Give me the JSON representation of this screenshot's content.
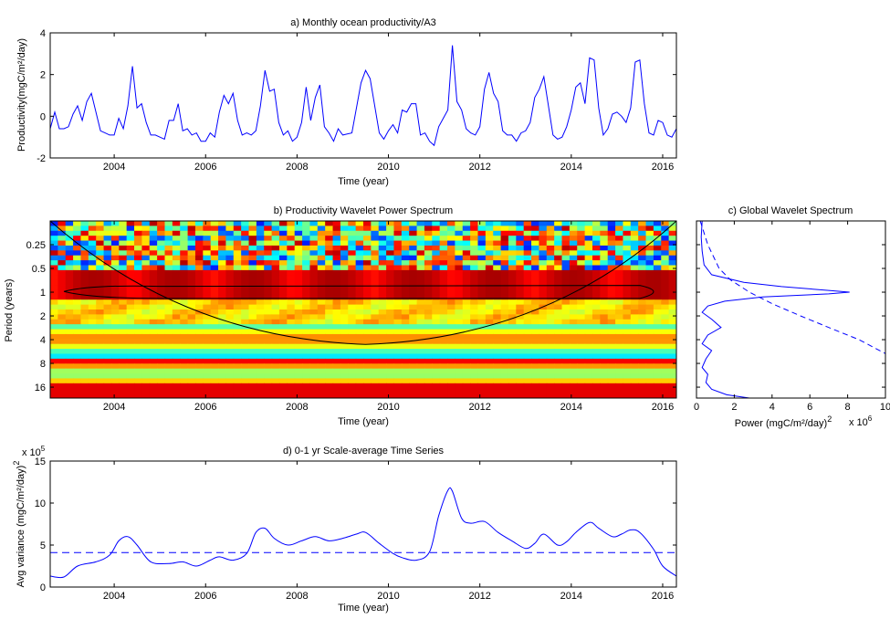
{
  "chart_data": [
    {
      "id": "a",
      "type": "line",
      "title": "a) Monthly ocean productivity/A3",
      "xlabel": "Time (year)",
      "ylabel": "Productivity(mgC/m²/day)",
      "xlim": [
        2002.6,
        2016.3
      ],
      "ylim": [
        -2,
        4
      ],
      "xticks": [
        2004,
        2006,
        2008,
        2010,
        2012,
        2014,
        2016
      ],
      "yticks": [
        -2,
        0,
        2,
        4
      ],
      "line_color": "#0000ff",
      "series": [
        {
          "x": [
            2002.6,
            2002.7,
            2002.8,
            2002.9,
            2003.0,
            2003.1,
            2003.2,
            2003.3,
            2003.4,
            2003.5,
            2003.6,
            2003.7,
            2003.8,
            2003.9,
            2004.0,
            2004.1,
            2004.2,
            2004.3,
            2004.4,
            2004.5,
            2004.6,
            2004.7,
            2004.8,
            2004.9,
            2005.0,
            2005.1,
            2005.2,
            2005.3,
            2005.4,
            2005.5,
            2005.6,
            2005.7,
            2005.8,
            2005.9,
            2006.0,
            2006.1,
            2006.2,
            2006.3,
            2006.4,
            2006.5,
            2006.6,
            2006.7,
            2006.8,
            2006.9,
            2007.0,
            2007.1,
            2007.2,
            2007.3,
            2007.4,
            2007.5,
            2007.6,
            2007.7,
            2007.8,
            2007.9,
            2008.0,
            2008.1,
            2008.2,
            2008.3,
            2008.4,
            2008.5,
            2008.6,
            2008.7,
            2008.8,
            2008.9,
            2009.0,
            2009.2,
            2009.4,
            2009.5,
            2009.6,
            2009.8,
            2009.9,
            2010.0,
            2010.1,
            2010.2,
            2010.3,
            2010.4,
            2010.5,
            2010.6,
            2010.7,
            2010.8,
            2010.9,
            2011.0,
            2011.1,
            2011.2,
            2011.3,
            2011.4,
            2011.5,
            2011.6,
            2011.7,
            2011.8,
            2011.9,
            2012.0,
            2012.1,
            2012.2,
            2012.3,
            2012.4,
            2012.5,
            2012.6,
            2012.7,
            2012.8,
            2012.9,
            2013.0,
            2013.1,
            2013.2,
            2013.3,
            2013.4,
            2013.5,
            2013.6,
            2013.7,
            2013.8,
            2013.9,
            2014.0,
            2014.1,
            2014.2,
            2014.3,
            2014.4,
            2014.5,
            2014.6,
            2014.7,
            2014.8,
            2014.9,
            2015.0,
            2015.1,
            2015.2,
            2015.3,
            2015.4,
            2015.5,
            2015.6,
            2015.7,
            2015.8,
            2015.9,
            2016.0,
            2016.1,
            2016.2,
            2016.3
          ],
          "y": [
            -0.6,
            0.2,
            -0.6,
            -0.6,
            -0.5,
            0.1,
            0.5,
            -0.2,
            0.7,
            1.1,
            0.2,
            -0.7,
            -0.8,
            -0.9,
            -0.9,
            -0.1,
            -0.6,
            0.5,
            2.4,
            0.4,
            0.6,
            -0.3,
            -0.9,
            -0.9,
            -1.0,
            -1.1,
            -0.2,
            -0.2,
            0.6,
            -0.7,
            -0.6,
            -0.9,
            -0.8,
            -1.2,
            -1.2,
            -0.8,
            -1.0,
            0.2,
            1.0,
            0.6,
            1.1,
            -0.2,
            -0.9,
            -0.8,
            -0.9,
            -0.7,
            0.5,
            2.2,
            1.2,
            1.3,
            -0.3,
            -0.9,
            -0.7,
            -1.2,
            -1.0,
            -0.3,
            1.4,
            -0.2,
            0.9,
            1.5,
            -0.5,
            -0.8,
            -1.2,
            -0.6,
            -0.9,
            -0.8,
            1.6,
            2.2,
            1.8,
            -0.8,
            -1.1,
            -0.7,
            -0.4,
            -0.8,
            0.3,
            0.2,
            0.6,
            0.6,
            -0.9,
            -0.8,
            -1.2,
            -1.4,
            -0.5,
            -0.1,
            0.3,
            3.4,
            0.7,
            0.3,
            -0.6,
            -0.8,
            -0.9,
            -0.5,
            1.3,
            2.1,
            1.1,
            0.7,
            -0.7,
            -0.9,
            -0.9,
            -1.2,
            -0.8,
            -0.7,
            -0.3,
            0.9,
            1.3,
            1.9,
            0.5,
            -0.9,
            -1.1,
            -1.0,
            -0.5,
            0.3,
            1.4,
            1.6,
            0.6,
            2.8,
            2.7,
            0.4,
            -0.9,
            -0.6,
            0.1,
            0.2,
            0.0,
            -0.3,
            0.4,
            2.6,
            2.7,
            0.6,
            -0.8,
            -0.9,
            -0.2,
            -0.3,
            -0.9,
            -1.0,
            -0.6
          ]
        }
      ]
    },
    {
      "id": "b",
      "type": "heatmap",
      "title": "b) Productivity Wavelet Power Spectrum",
      "xlabel": "Time (year)",
      "ylabel": "Period (years)",
      "xlim": [
        2002.6,
        2016.3
      ],
      "ylim": [
        0.125,
        22
      ],
      "yscale": "log2-reversed",
      "xticks": [
        2004,
        2006,
        2008,
        2010,
        2012,
        2014,
        2016
      ],
      "ytick_labels": [
        "0.25",
        "0.5",
        "1",
        "2",
        "4",
        "8",
        "16"
      ],
      "yticks": [
        0.25,
        0.5,
        1,
        2,
        4,
        8,
        16
      ],
      "colormap": "jet"
    },
    {
      "id": "c",
      "type": "line",
      "title": "c) Global Wavelet Spectrum",
      "xlabel": "Power (mgC/m²/day)",
      "xlabel_sup": "2",
      "x_multiplier": "x 10",
      "x_multiplier_exp": "6",
      "xlim": [
        0,
        10
      ],
      "xticks": [
        0,
        2,
        4,
        6,
        8,
        10
      ],
      "line_color": "#0000ff",
      "series": [
        {
          "style": "solid",
          "period": [
            0.125,
            0.2,
            0.3,
            0.45,
            0.6,
            0.75,
            0.85,
            0.95,
            1.0,
            1.05,
            1.15,
            1.3,
            1.5,
            1.8,
            2.2,
            2.8,
            3.5,
            4.5,
            5.5,
            7,
            9,
            11,
            14,
            17,
            20,
            22
          ],
          "power": [
            0.3,
            0.25,
            0.3,
            0.4,
            0.8,
            2.5,
            4.5,
            7.0,
            8.1,
            7.0,
            3.5,
            1.5,
            0.6,
            0.3,
            0.8,
            1.3,
            0.6,
            0.3,
            0.8,
            0.5,
            0.3,
            0.6,
            0.5,
            0.8,
            1.6,
            2.8
          ]
        },
        {
          "style": "dashed",
          "period": [
            0.125,
            0.25,
            0.5,
            0.7,
            1.0,
            1.4,
            2,
            3,
            4,
            6,
            8,
            11
          ],
          "power": [
            0.2,
            0.6,
            1.2,
            1.8,
            2.8,
            4.0,
            5.5,
            7.3,
            8.6,
            10.0,
            10.8,
            11.5
          ]
        }
      ]
    },
    {
      "id": "d",
      "type": "line",
      "title": "d) 0-1 yr Scale-average Time Series",
      "xlabel": "Time (year)",
      "ylabel": "Avg variance (mgC/m²/day)",
      "ylabel_sup": "2",
      "y_multiplier": "x 10",
      "y_multiplier_exp": "5",
      "xlim": [
        2002.6,
        2016.3
      ],
      "ylim": [
        0,
        15
      ],
      "xticks": [
        2004,
        2006,
        2008,
        2010,
        2012,
        2014,
        2016
      ],
      "yticks": [
        0,
        5,
        10,
        15
      ],
      "line_color": "#0000ff",
      "threshold": 4.1,
      "series": [
        {
          "x": [
            2002.6,
            2002.9,
            2003.2,
            2003.6,
            2003.9,
            2004.1,
            2004.3,
            2004.5,
            2004.8,
            2005.2,
            2005.5,
            2005.8,
            2006.1,
            2006.3,
            2006.6,
            2006.9,
            2007.1,
            2007.3,
            2007.5,
            2007.8,
            2008.1,
            2008.4,
            2008.7,
            2009.0,
            2009.3,
            2009.5,
            2009.8,
            2010.1,
            2010.3,
            2010.6,
            2010.9,
            2011.1,
            2011.3,
            2011.4,
            2011.6,
            2011.8,
            2012.1,
            2012.4,
            2012.7,
            2013.0,
            2013.2,
            2013.4,
            2013.7,
            2013.9,
            2014.1,
            2014.4,
            2014.6,
            2014.9,
            2015.1,
            2015.3,
            2015.5,
            2015.8,
            2016.0,
            2016.3
          ],
          "y": [
            1.3,
            1.2,
            2.5,
            3.0,
            3.8,
            5.5,
            6.0,
            5.0,
            3.0,
            2.8,
            3.0,
            2.5,
            3.2,
            3.6,
            3.2,
            4.0,
            6.5,
            7.0,
            5.8,
            5.0,
            5.5,
            6.0,
            5.5,
            5.8,
            6.3,
            6.5,
            5.2,
            4.0,
            3.5,
            3.2,
            4.2,
            8.5,
            11.5,
            11.4,
            8.2,
            7.6,
            7.8,
            6.5,
            5.5,
            4.6,
            5.2,
            6.3,
            5.0,
            5.4,
            6.5,
            7.7,
            7.0,
            6.0,
            6.3,
            6.8,
            6.5,
            4.5,
            2.5,
            1.3
          ]
        }
      ]
    }
  ]
}
